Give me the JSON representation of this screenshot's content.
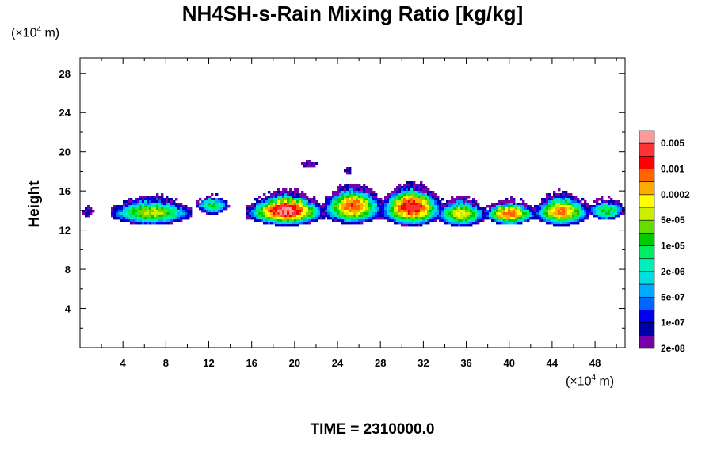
{
  "chart_data": {
    "type": "heatmap",
    "title": "NH4SH-s-Rain Mixing Ratio [kg/kg]",
    "ylabel": "Height",
    "x_unit": "(×10⁴ m)",
    "y_unit": "(×10⁴ m)",
    "xlim": [
      0,
      50.8
    ],
    "ylim": [
      0,
      29.6
    ],
    "x_ticks": [
      4,
      8,
      12,
      16,
      20,
      24,
      28,
      32,
      36,
      40,
      44,
      48
    ],
    "y_ticks": [
      4,
      8,
      12,
      16,
      20,
      24,
      28
    ],
    "colorbar": {
      "labels": [
        "0.005",
        "0.001",
        "0.0002",
        "5e-05",
        "1e-05",
        "2e-06",
        "5e-07",
        "1e-07",
        "2e-08"
      ],
      "colors": [
        "#ff9999",
        "#ff3333",
        "#ff0000",
        "#ff6600",
        "#ffaa00",
        "#ffff00",
        "#ccee00",
        "#66dd00",
        "#00cc00",
        "#00ee66",
        "#00eebb",
        "#00dddd",
        "#00aaff",
        "#0066ff",
        "#0000ee",
        "#0000aa",
        "#7700aa"
      ]
    },
    "cloud_cells": [
      {
        "x0": 2.8,
        "x1": 10.5,
        "base": 12.5,
        "top": 15.6,
        "peak": 0.55
      },
      {
        "x0": 10.8,
        "x1": 13.9,
        "base": 13.6,
        "top": 15.6,
        "peak": 0.45
      },
      {
        "x0": 15.6,
        "x1": 22.8,
        "base": 12.4,
        "top": 16.2,
        "peak": 0.9
      },
      {
        "x0": 22.6,
        "x1": 28.2,
        "base": 12.6,
        "top": 16.9,
        "peak": 0.75
      },
      {
        "x0": 28.0,
        "x1": 33.8,
        "base": 12.4,
        "top": 17.0,
        "peak": 0.85
      },
      {
        "x0": 33.2,
        "x1": 37.8,
        "base": 12.3,
        "top": 15.5,
        "peak": 0.6
      },
      {
        "x0": 37.6,
        "x1": 42.5,
        "base": 12.5,
        "top": 15.2,
        "peak": 0.75
      },
      {
        "x0": 42.3,
        "x1": 47.5,
        "base": 12.4,
        "top": 16.0,
        "peak": 0.7
      },
      {
        "x0": 47.3,
        "x1": 50.8,
        "base": 13.0,
        "top": 15.3,
        "peak": 0.45
      },
      {
        "x0": 0.0,
        "x1": 1.4,
        "base": 13.4,
        "top": 14.4,
        "peak": 0.05
      },
      {
        "x0": 20.2,
        "x1": 22.5,
        "base": 18.4,
        "top": 19.1,
        "peak": 0.02
      },
      {
        "x0": 24.5,
        "x1": 25.4,
        "base": 17.6,
        "top": 18.4,
        "peak": 0.02
      }
    ],
    "time_label": "TIME = 2310000.0"
  }
}
